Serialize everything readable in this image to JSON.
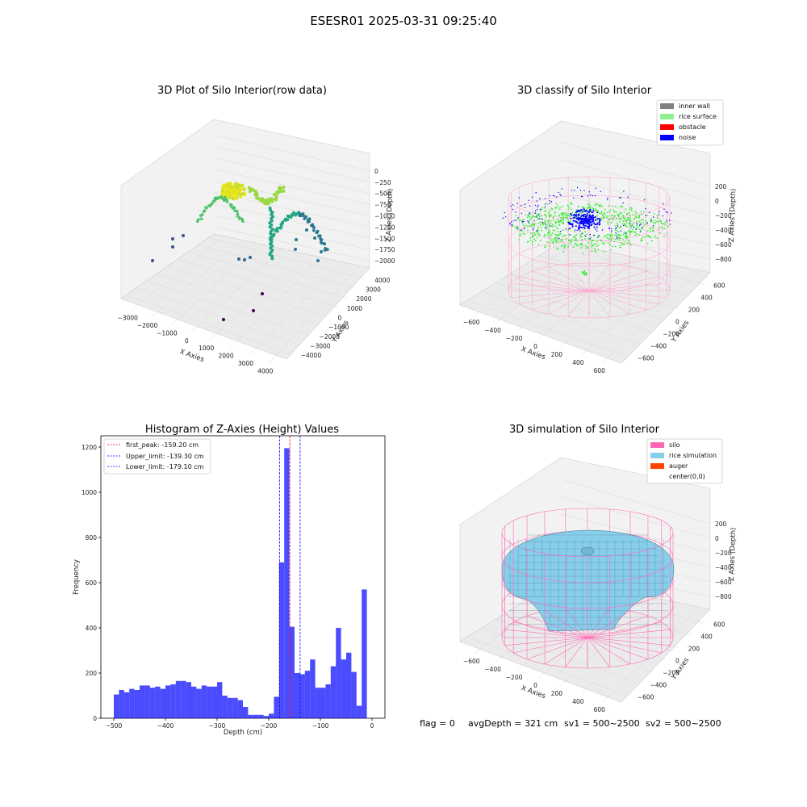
{
  "figure_title": "ESESR01 2025-03-31 09:25:40",
  "footer": {
    "flag": "flag = 0",
    "avg_depth": "avgDepth = 321 cm",
    "sv1": "sv1 = 500~2500",
    "sv2": "sv2 = 500~2500"
  },
  "colors": {
    "inner_wall": "#808080",
    "rice_surface": "#90ee90",
    "obstacle": "#ff0000",
    "noise": "#0000ff",
    "silo": "#ff69b4",
    "rice_simulation": "#87ceeb",
    "auger": "#ff4500",
    "hist_bar": "#0000ff",
    "first_peak": "#ff0000",
    "limits": "#0000ff"
  },
  "chart_data": [
    {
      "type": "scatter",
      "title": "3D Plot of Silo Interior(row data)",
      "xlabel": "X Axies",
      "ylabel": "Y Axies",
      "zlabel": "Z Axies (Depth)",
      "x_ticks": [
        "−3000",
        "−2000",
        "−1000",
        "0",
        "1000",
        "2000",
        "3000",
        "4000"
      ],
      "y_ticks": [
        "−4000",
        "−3000",
        "−2000",
        "−1000",
        "0",
        "1000",
        "2000",
        "3000",
        "4000"
      ],
      "z_ticks": [
        "0",
        "−250",
        "−500",
        "−750",
        "−1000",
        "−1250",
        "−1500",
        "−1750",
        "−2000"
      ]
    },
    {
      "type": "scatter",
      "title": "3D classify of Silo Interior",
      "xlabel": "X Axies",
      "ylabel": "Y Axies",
      "zlabel": "Z Axies (Depth)",
      "x_ticks": [
        "−600",
        "−400",
        "−200",
        "0",
        "200",
        "400",
        "600"
      ],
      "y_ticks": [
        "−600",
        "−400",
        "−200",
        "0",
        "200",
        "400",
        "600"
      ],
      "z_ticks": [
        "200",
        "0",
        "−200",
        "−400",
        "−600",
        "−800"
      ],
      "legend": [
        "inner wall",
        "rice surface",
        "obstacle",
        "noise"
      ]
    },
    {
      "type": "bar",
      "title": "Histogram of Z-Axies (Height) Values",
      "xlabel": "Depth (cm)",
      "ylabel": "Frequency",
      "xlim": [
        -525,
        25
      ],
      "ylim": [
        0,
        1250
      ],
      "x_ticks": [
        -500,
        -400,
        -300,
        -200,
        -100,
        0
      ],
      "x_tick_labels": [
        "−500",
        "−400",
        "−300",
        "−200",
        "−100",
        "0"
      ],
      "y_ticks": [
        0,
        200,
        400,
        600,
        800,
        1000,
        1200
      ],
      "bin_start": -500,
      "bin_width": 10,
      "values": [
        105,
        125,
        115,
        130,
        125,
        145,
        145,
        135,
        140,
        130,
        145,
        150,
        165,
        165,
        160,
        140,
        130,
        145,
        140,
        140,
        160,
        100,
        90,
        90,
        80,
        50,
        15,
        15,
        15,
        10,
        20,
        95,
        690,
        1195,
        405,
        200,
        195,
        210,
        260,
        135,
        135,
        150,
        230,
        400,
        260,
        290,
        205,
        55,
        570
      ],
      "lines": [
        {
          "label": "first_peak: -159.20 cm",
          "x": -159.2,
          "style": "first_peak"
        },
        {
          "label": "Upper_limit: -139.30 cm",
          "x": -139.3,
          "style": "limits"
        },
        {
          "label": "Lower_limit: -179.10 cm",
          "x": -179.1,
          "style": "limits"
        }
      ]
    },
    {
      "type": "surface",
      "title": "3D simulation of Silo Interior",
      "xlabel": "X Axies",
      "ylabel": "Y Axies",
      "zlabel": "Z Axies (Depth)",
      "x_ticks": [
        "−600",
        "−400",
        "−200",
        "0",
        "200",
        "400",
        "600"
      ],
      "y_ticks": [
        "−600",
        "−400",
        "−200",
        "0",
        "200",
        "400",
        "600"
      ],
      "z_ticks": [
        "200",
        "0",
        "−200",
        "−400",
        "−600",
        "−800"
      ],
      "legend": [
        "silo",
        "rice simulation",
        "auger",
        "center(0,0)"
      ]
    }
  ]
}
